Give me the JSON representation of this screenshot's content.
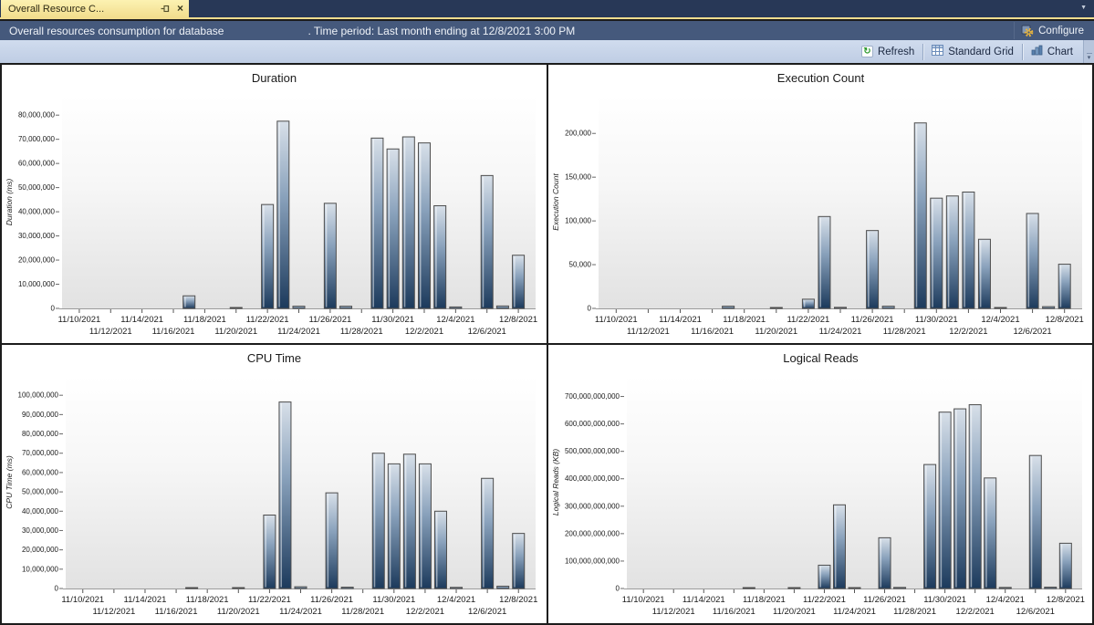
{
  "tab": {
    "title": "Overall Resource C...",
    "close_glyph": "×",
    "caret_glyph": "▼"
  },
  "header": {
    "title_prefix": "Overall resources consumption for database",
    "title_suffix": ". Time period: Last month ending at 12/8/2021 3:00 PM",
    "configure_label": "Configure"
  },
  "toolbar": {
    "refresh_label": "Refresh",
    "refresh_glyph": "↻",
    "grid_label": "Standard Grid",
    "chart_label": "Chart",
    "overflow_glyph": "▾"
  },
  "colors": {
    "tab_yellow": "#f6e49a",
    "tabbar_bg": "#283857",
    "header_blue": "#45597c",
    "toolbar_bg": "#c6d3e8",
    "panel_divider": "#1c1c1c",
    "bar_top": "#d8e0e9",
    "bar_mid": "#8aa2bc",
    "bar_bottom": "#1c3a5c",
    "bar_border": "#4d4d4d",
    "plot_bg_top": "#ffffff",
    "plot_bg_bottom": "#e2e2e2"
  },
  "x_axis_shared": {
    "start_date": "11/9/2021",
    "end_date": "12/8/2021",
    "tick_labels": [
      "11/10/2021",
      "11/12/2021",
      "11/14/2021",
      "11/16/2021",
      "11/18/2021",
      "11/20/2021",
      "11/22/2021",
      "11/24/2021",
      "11/26/2021",
      "11/28/2021",
      "11/30/2021",
      "12/2/2021",
      "12/4/2021",
      "12/6/2021",
      "12/8/2021"
    ]
  },
  "chart_data": [
    {
      "type": "bar",
      "title": "Duration",
      "ylabel": "Duration (ms)",
      "xlabel": "",
      "grid": false,
      "legend": null,
      "categories": [
        "11/17/2021",
        "11/20/2021",
        "11/22/2021",
        "11/23/2021",
        "11/24/2021",
        "11/26/2021",
        "11/27/2021",
        "11/29/2021",
        "11/30/2021",
        "12/1/2021",
        "12/2/2021",
        "12/3/2021",
        "12/4/2021",
        "12/6/2021",
        "12/7/2021",
        "12/8/2021"
      ],
      "values": [
        5200000,
        250000,
        43000000,
        77500000,
        900000,
        43500000,
        900000,
        70500000,
        66000000,
        71000000,
        68500000,
        42500000,
        600000,
        55000000,
        1000000,
        22000000
      ],
      "xticks": [
        "11/10/2021",
        "11/12/2021",
        "11/14/2021",
        "11/16/2021",
        "11/18/2021",
        "11/20/2021",
        "11/22/2021",
        "11/24/2021",
        "11/26/2021",
        "11/28/2021",
        "11/30/2021",
        "12/2/2021",
        "12/4/2021",
        "12/6/2021",
        "12/8/2021"
      ],
      "yticks": [
        0,
        10000000,
        20000000,
        30000000,
        40000000,
        50000000,
        60000000,
        70000000,
        80000000
      ],
      "ylim": [
        0,
        88000000
      ]
    },
    {
      "type": "bar",
      "title": "Execution Count",
      "ylabel": "Execution Count",
      "xlabel": "",
      "grid": false,
      "legend": null,
      "categories": [
        "11/17/2021",
        "11/20/2021",
        "11/22/2021",
        "11/23/2021",
        "11/24/2021",
        "11/26/2021",
        "11/27/2021",
        "11/29/2021",
        "11/30/2021",
        "12/1/2021",
        "12/2/2021",
        "12/3/2021",
        "12/4/2021",
        "12/6/2021",
        "12/7/2021",
        "12/8/2021"
      ],
      "values": [
        2500,
        800,
        10500,
        105000,
        1200,
        89000,
        2500,
        212000,
        126000,
        128500,
        133000,
        79000,
        1000,
        108500,
        2000,
        50500
      ],
      "xticks": [
        "11/10/2021",
        "11/12/2021",
        "11/14/2021",
        "11/16/2021",
        "11/18/2021",
        "11/20/2021",
        "11/22/2021",
        "11/24/2021",
        "11/26/2021",
        "11/28/2021",
        "11/30/2021",
        "12/2/2021",
        "12/4/2021",
        "12/6/2021",
        "12/8/2021"
      ],
      "yticks": [
        0,
        50000,
        100000,
        150000,
        200000
      ],
      "ylim": [
        0,
        243000
      ]
    },
    {
      "type": "bar",
      "title": "CPU Time",
      "ylabel": "CPU Time (ms)",
      "xlabel": "",
      "grid": false,
      "legend": null,
      "categories": [
        "11/17/2021",
        "11/20/2021",
        "11/22/2021",
        "11/23/2021",
        "11/24/2021",
        "11/26/2021",
        "11/27/2021",
        "11/29/2021",
        "11/30/2021",
        "12/1/2021",
        "12/2/2021",
        "12/3/2021",
        "12/4/2021",
        "12/6/2021",
        "12/7/2021",
        "12/8/2021"
      ],
      "values": [
        400000,
        150000,
        38000000,
        96500000,
        900000,
        49500000,
        700000,
        70000000,
        64500000,
        69500000,
        64500000,
        40000000,
        600000,
        57000000,
        1200000,
        28500000
      ],
      "xticks": [
        "11/10/2021",
        "11/12/2021",
        "11/14/2021",
        "11/16/2021",
        "11/18/2021",
        "11/20/2021",
        "11/22/2021",
        "11/24/2021",
        "11/26/2021",
        "11/28/2021",
        "11/30/2021",
        "12/2/2021",
        "12/4/2021",
        "12/6/2021",
        "12/8/2021"
      ],
      "yticks": [
        0,
        10000000,
        20000000,
        30000000,
        40000000,
        50000000,
        60000000,
        70000000,
        80000000,
        90000000,
        100000000
      ],
      "ylim": [
        0,
        110000000
      ]
    },
    {
      "type": "bar",
      "title": "Logical Reads",
      "ylabel": "Logical Reads (KB)",
      "xlabel": "",
      "grid": false,
      "legend": null,
      "categories": [
        "11/17/2021",
        "11/20/2021",
        "11/22/2021",
        "11/23/2021",
        "11/24/2021",
        "11/26/2021",
        "11/27/2021",
        "11/29/2021",
        "11/30/2021",
        "12/1/2021",
        "12/2/2021",
        "12/3/2021",
        "12/4/2021",
        "12/6/2021",
        "12/7/2021",
        "12/8/2021"
      ],
      "values": [
        500000000,
        200000000,
        85000000000,
        305000000000,
        3000000000,
        185000000000,
        4000000000,
        452000000000,
        643000000000,
        655000000000,
        670000000000,
        403000000000,
        4000000000,
        485000000000,
        5000000000,
        165000000000
      ],
      "xticks": [
        "11/10/2021",
        "11/12/2021",
        "11/14/2021",
        "11/16/2021",
        "11/18/2021",
        "11/20/2021",
        "11/22/2021",
        "11/24/2021",
        "11/26/2021",
        "11/28/2021",
        "11/30/2021",
        "12/2/2021",
        "12/4/2021",
        "12/6/2021",
        "12/8/2021"
      ],
      "yticks": [
        0,
        100000000000,
        200000000000,
        300000000000,
        400000000000,
        500000000000,
        600000000000,
        700000000000
      ],
      "ylim": [
        0,
        775000000000
      ]
    }
  ]
}
